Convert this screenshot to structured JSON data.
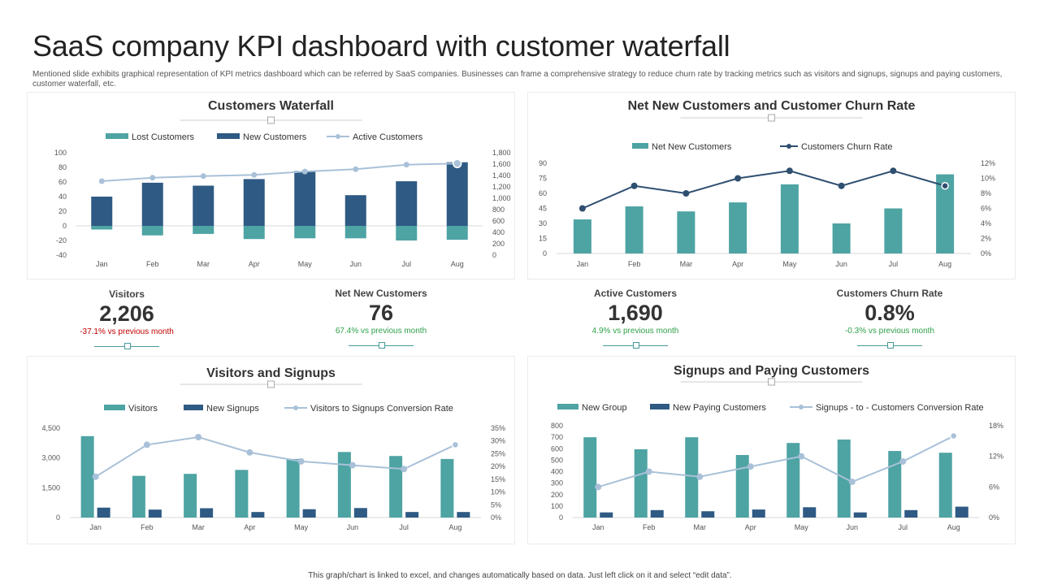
{
  "title": "SaaS company KPI dashboard with customer waterfall",
  "subtitle": "Mentioned slide exhibits graphical representation of KPI metrics dashboard which can be referred by SaaS companies. Businesses can frame a comprehensive strategy to reduce churn rate by tracking metrics such as visitors and signups, signups and paying customers, customer waterfall, etc.",
  "footer": "This graph/chart is linked to excel, and changes automatically based on data. Just left click on it and select “edit data”.",
  "colors": {
    "teal": "#4ea3a3",
    "navy": "#2f5a84",
    "light": "#a9c1d8",
    "line_dark": "#2f4f70",
    "negative": "#c00000",
    "positive": "#2fa14a"
  },
  "kpis": [
    {
      "label": "Visitors",
      "value": "2,206",
      "delta": "-37.1% vs previous month",
      "trend": "negative"
    },
    {
      "label": "Net New Customers",
      "value": "76",
      "delta": "67.4% vs previous month",
      "trend": "positive"
    },
    {
      "label": "Active Customers",
      "value": "1,690",
      "delta": "4.9% vs previous month",
      "trend": "positive"
    },
    {
      "label": "Customers Churn Rate",
      "value": "0.8%",
      "delta": "-0.3% vs previous month",
      "trend": "positive"
    }
  ],
  "chart_data": [
    {
      "id": "waterfall",
      "type": "bar",
      "title": "Customers  Waterfall",
      "categories": [
        "Jan",
        "Feb",
        "Mar",
        "Apr",
        "May",
        "Jun",
        "Jul",
        "Aug"
      ],
      "series": [
        {
          "name": "Lost Customers",
          "kind": "bar",
          "axis": "left",
          "values": [
            -5,
            -13,
            -11,
            -18,
            -17,
            -17,
            -20,
            -19
          ]
        },
        {
          "name": "New Customers",
          "kind": "bar",
          "axis": "left",
          "values": [
            40,
            59,
            55,
            64,
            75,
            42,
            61,
            87
          ]
        },
        {
          "name": "Active Customers",
          "kind": "line",
          "axis": "right",
          "values": [
            1300,
            1360,
            1390,
            1410,
            1470,
            1510,
            1590,
            1610
          ]
        }
      ],
      "ylim": [
        -40,
        100
      ],
      "yticks": [
        -40,
        -20,
        0,
        20,
        40,
        60,
        80,
        100
      ],
      "ytick_labels": [
        "-40",
        "-20",
        "0",
        "20",
        "40",
        "60",
        "80",
        "100"
      ],
      "y2lim": [
        0,
        1800
      ],
      "y2ticks": [
        0,
        200,
        400,
        600,
        800,
        1000,
        1200,
        1400,
        1600,
        1800
      ],
      "y2tick_labels": [
        "0",
        "200",
        "400",
        "600",
        "800",
        "1,000",
        "1,200",
        "1,400",
        "1,600",
        "1,800"
      ]
    },
    {
      "id": "churn",
      "type": "bar",
      "title": "Net New Customers and Customer Churn Rate",
      "categories": [
        "Jan",
        "Feb",
        "Mar",
        "Apr",
        "May",
        "Jun",
        "Jul",
        "Aug"
      ],
      "series": [
        {
          "name": "Net New Customers",
          "kind": "bar",
          "axis": "left",
          "values": [
            34,
            47,
            42,
            51,
            69,
            30,
            45,
            79
          ]
        },
        {
          "name": "Customers Churn Rate",
          "kind": "line",
          "axis": "right",
          "values": [
            6,
            9,
            8,
            10,
            11,
            9,
            11,
            9
          ]
        }
      ],
      "ylim": [
        0,
        90
      ],
      "yticks": [
        0,
        15,
        30,
        45,
        60,
        75,
        90
      ],
      "ytick_labels": [
        "0",
        "15",
        "30",
        "45",
        "60",
        "75",
        "90"
      ],
      "y2lim": [
        0,
        12
      ],
      "y2ticks": [
        0,
        2,
        4,
        6,
        8,
        10,
        12
      ],
      "y2tick_labels": [
        "0%",
        "2%",
        "4%",
        "6%",
        "8%",
        "10%",
        "12%"
      ]
    },
    {
      "id": "visitors",
      "type": "bar",
      "title": "Visitors and Signups",
      "categories": [
        "Jan",
        "Feb",
        "Mar",
        "Apr",
        "May",
        "Jun",
        "Jul",
        "Aug"
      ],
      "series": [
        {
          "name": "Visitors",
          "kind": "bar",
          "axis": "left",
          "values": [
            4100,
            2100,
            2200,
            2400,
            2950,
            3300,
            3100,
            2950
          ]
        },
        {
          "name": "New Signups",
          "kind": "bar",
          "axis": "left",
          "values": [
            500,
            400,
            470,
            280,
            420,
            480,
            280,
            280
          ]
        },
        {
          "name": "Visitors to Signups Conversion Rate",
          "kind": "line",
          "axis": "right",
          "values": [
            16,
            28.5,
            31.5,
            25.5,
            22,
            20.5,
            19,
            28.5
          ]
        }
      ],
      "ylim": [
        0,
        4500
      ],
      "yticks": [
        0,
        1500,
        3000,
        4500
      ],
      "ytick_labels": [
        "0",
        "1,500",
        "3,000",
        "4,500"
      ],
      "y2lim": [
        0,
        35
      ],
      "y2ticks": [
        0,
        5,
        10,
        15,
        20,
        25,
        30,
        35
      ],
      "y2tick_labels": [
        "0%",
        "5%",
        "10%",
        "15%",
        "20%",
        "25%",
        "30%",
        "35%"
      ]
    },
    {
      "id": "paying",
      "type": "bar",
      "title": "Signups and Paying Customers",
      "categories": [
        "Jan",
        "Feb",
        "Mar",
        "Apr",
        "May",
        "Jun",
        "Jul",
        "Aug"
      ],
      "series": [
        {
          "name": "New Group",
          "kind": "bar",
          "axis": "left",
          "values": [
            700,
            595,
            700,
            545,
            650,
            680,
            580,
            565
          ]
        },
        {
          "name": "New Paying Customers",
          "kind": "bar",
          "axis": "left",
          "values": [
            45,
            65,
            55,
            70,
            90,
            45,
            65,
            95
          ]
        },
        {
          "name": "Signups - to - Customers Conversion Rate",
          "kind": "line",
          "axis": "right",
          "values": [
            6,
            9,
            8,
            10,
            12,
            7,
            11,
            16
          ]
        }
      ],
      "ylim": [
        0,
        800
      ],
      "yticks": [
        0,
        100,
        200,
        300,
        400,
        500,
        600,
        700,
        800
      ],
      "ytick_labels": [
        "0",
        "100",
        "200",
        "300",
        "400",
        "500",
        "600",
        "700",
        "800"
      ],
      "y2lim": [
        0,
        18
      ],
      "y2ticks": [
        0,
        6,
        12,
        18
      ],
      "y2tick_labels": [
        "0%",
        "6%",
        "12%",
        "18%"
      ]
    }
  ]
}
